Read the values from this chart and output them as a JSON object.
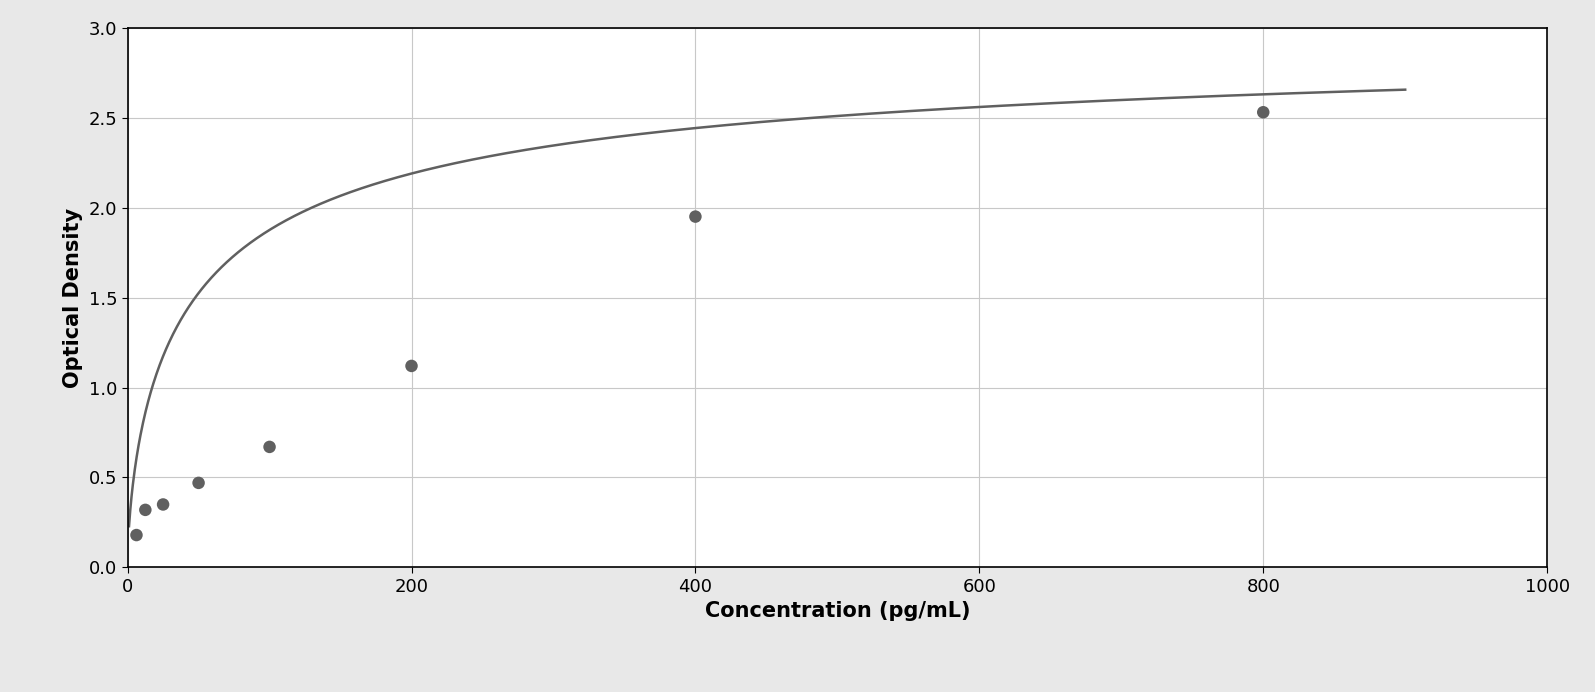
{
  "x_data": [
    6.25,
    12.5,
    25,
    50,
    100,
    200,
    400,
    800
  ],
  "y_data": [
    0.18,
    0.32,
    0.35,
    0.47,
    0.67,
    1.12,
    1.95,
    2.53
  ],
  "xlabel": "Concentration (pg/mL)",
  "ylabel": "Optical Density",
  "xlim": [
    0,
    1000
  ],
  "ylim": [
    0,
    3
  ],
  "xticks": [
    0,
    200,
    400,
    600,
    800,
    1000
  ],
  "yticks": [
    0,
    0.5,
    1.0,
    1.5,
    2.0,
    2.5,
    3.0
  ],
  "data_color": "#606060",
  "line_color": "#606060",
  "grid_color": "#c8c8c8",
  "background_color": "#ffffff",
  "outer_background": "#e8e8e8",
  "border_color": "#aaaaaa",
  "xlabel_fontsize": 15,
  "ylabel_fontsize": 15,
  "tick_fontsize": 13,
  "marker_size": 9,
  "line_width": 1.8
}
